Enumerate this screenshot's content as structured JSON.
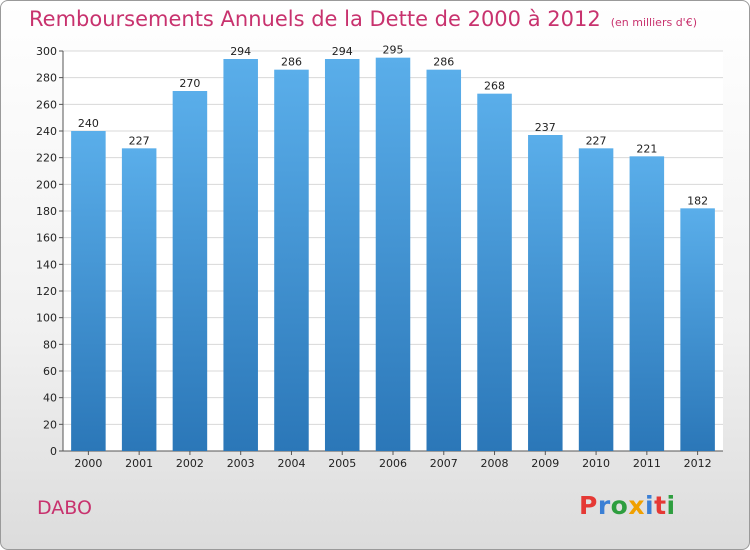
{
  "title": "Remboursements Annuels de la Dette de 2000 à 2012",
  "subtitle": "(en milliers d'€)",
  "city": "DABO",
  "brand": {
    "letters": [
      "P",
      "r",
      "o",
      "x",
      "i",
      "t",
      "i"
    ],
    "colors": [
      "#e53935",
      "#3a7fd5",
      "#2e9e3f",
      "#f0a000",
      "#3a7fd5",
      "#e53935",
      "#2e9e3f"
    ]
  },
  "colors": {
    "bar_top": "#5aaeea",
    "bar_bottom": "#2b77b8",
    "title": "#c8326e"
  },
  "chart_data": {
    "type": "bar",
    "categories": [
      "2000",
      "2001",
      "2002",
      "2003",
      "2004",
      "2005",
      "2006",
      "2007",
      "2008",
      "2009",
      "2010",
      "2011",
      "2012"
    ],
    "values": [
      240,
      227,
      270,
      294,
      286,
      294,
      295,
      286,
      268,
      237,
      227,
      221,
      182
    ],
    "ylim": [
      0,
      300
    ],
    "yticks": [
      0,
      20,
      40,
      60,
      80,
      100,
      120,
      140,
      160,
      180,
      200,
      220,
      240,
      260,
      280,
      300
    ],
    "grid": true,
    "legend": "none"
  }
}
